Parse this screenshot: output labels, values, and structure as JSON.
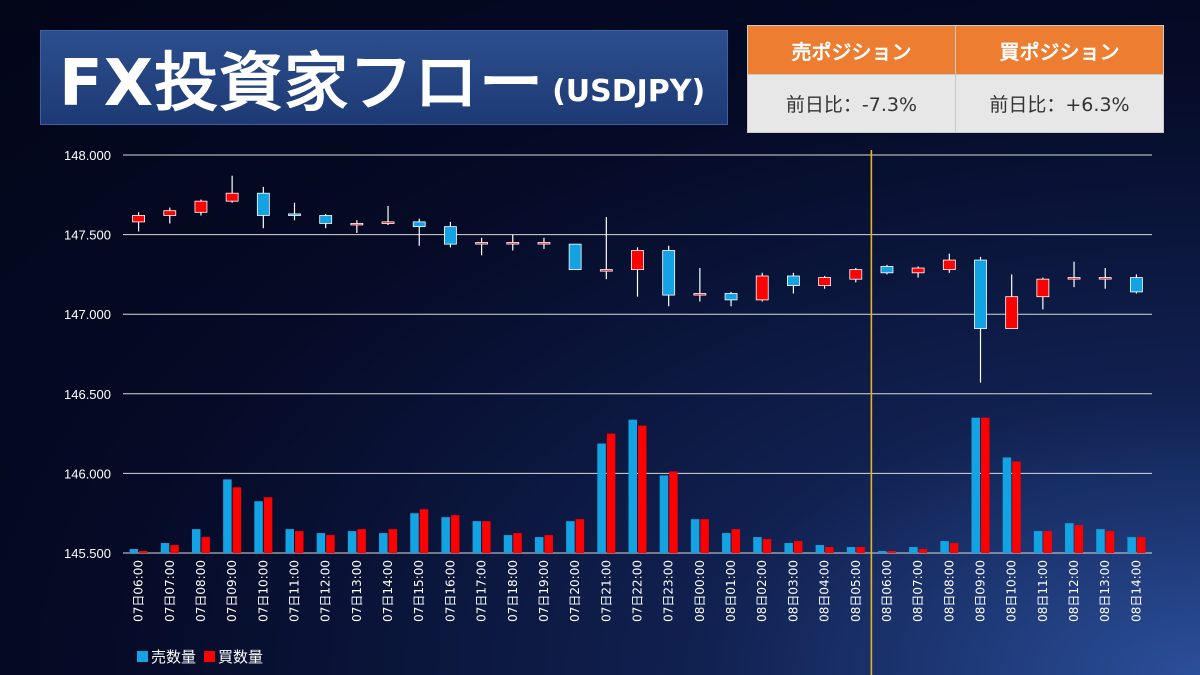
{
  "header": {
    "title": "FX投資家フロー",
    "subtitle": "(USDJPY)"
  },
  "position_table": {
    "sell_header": "売ポジション",
    "buy_header": "買ポジション",
    "sell_change": "前日比：-7.3%",
    "buy_change": "前日比：+6.3%"
  },
  "colors": {
    "sell": "#13a3e3",
    "buy": "#ff0000",
    "marker_line": "#e6b422",
    "grid": "#d9d9d9"
  },
  "legend": {
    "sell_label": "売数量",
    "buy_label": "買数量"
  },
  "chart_data": {
    "type": "candlestick_with_volume_bars",
    "ylim": [
      145.5,
      148.0
    ],
    "yticks": [
      "148.000",
      "147.500",
      "147.000",
      "146.500",
      "146.000",
      "145.500"
    ],
    "ytick_values": [
      148.0,
      147.5,
      147.0,
      146.5,
      146.0,
      145.5
    ],
    "vertical_marker_category": "08日06:00",
    "categories": [
      "07日06:00",
      "07日07:00",
      "07日08:00",
      "07日09:00",
      "07日10:00",
      "07日11:00",
      "07日12:00",
      "07日13:00",
      "07日14:00",
      "07日15:00",
      "07日16:00",
      "07日17:00",
      "07日18:00",
      "07日19:00",
      "07日20:00",
      "07日21:00",
      "07日22:00",
      "07日23:00",
      "08日00:00",
      "08日01:00",
      "08日02:00",
      "08日03:00",
      "08日04:00",
      "08日05:00",
      "08日06:00",
      "08日07:00",
      "08日08:00",
      "08日09:00",
      "08日10:00",
      "08日11:00",
      "08日12:00",
      "08日13:00",
      "08日14:00"
    ],
    "candles": [
      {
        "open": 147.58,
        "close": 147.62,
        "high": 147.64,
        "low": 147.52
      },
      {
        "open": 147.62,
        "close": 147.65,
        "high": 147.67,
        "low": 147.57
      },
      {
        "open": 147.64,
        "close": 147.71,
        "high": 147.72,
        "low": 147.62
      },
      {
        "open": 147.71,
        "close": 147.76,
        "high": 147.87,
        "low": 147.7
      },
      {
        "open": 147.76,
        "close": 147.62,
        "high": 147.8,
        "low": 147.54
      },
      {
        "open": 147.63,
        "close": 147.62,
        "high": 147.7,
        "low": 147.59
      },
      {
        "open": 147.62,
        "close": 147.57,
        "high": 147.63,
        "low": 147.54
      },
      {
        "open": 147.57,
        "close": 147.57,
        "high": 147.59,
        "low": 147.51
      },
      {
        "open": 147.57,
        "close": 147.58,
        "high": 147.68,
        "low": 147.56
      },
      {
        "open": 147.58,
        "close": 147.55,
        "high": 147.6,
        "low": 147.43
      },
      {
        "open": 147.55,
        "close": 147.44,
        "high": 147.58,
        "low": 147.42
      },
      {
        "open": 147.45,
        "close": 147.45,
        "high": 147.48,
        "low": 147.37
      },
      {
        "open": 147.45,
        "close": 147.45,
        "high": 147.5,
        "low": 147.4
      },
      {
        "open": 147.45,
        "close": 147.45,
        "high": 147.48,
        "low": 147.41
      },
      {
        "open": 147.44,
        "close": 147.28,
        "high": 147.44,
        "low": 147.28
      },
      {
        "open": 147.28,
        "close": 147.28,
        "high": 147.61,
        "low": 147.22
      },
      {
        "open": 147.28,
        "close": 147.4,
        "high": 147.42,
        "low": 147.11
      },
      {
        "open": 147.4,
        "close": 147.12,
        "high": 147.43,
        "low": 147.05
      },
      {
        "open": 147.12,
        "close": 147.13,
        "high": 147.29,
        "low": 147.08
      },
      {
        "open": 147.13,
        "close": 147.09,
        "high": 147.14,
        "low": 147.05
      },
      {
        "open": 147.09,
        "close": 147.24,
        "high": 147.26,
        "low": 147.08
      },
      {
        "open": 147.24,
        "close": 147.18,
        "high": 147.26,
        "low": 147.13
      },
      {
        "open": 147.18,
        "close": 147.23,
        "high": 147.24,
        "low": 147.16
      },
      {
        "open": 147.22,
        "close": 147.28,
        "high": 147.29,
        "low": 147.2
      },
      {
        "open": 147.3,
        "close": 147.26,
        "high": 147.31,
        "low": 147.25
      },
      {
        "open": 147.26,
        "close": 147.29,
        "high": 147.3,
        "low": 147.23
      },
      {
        "open": 147.28,
        "close": 147.34,
        "high": 147.38,
        "low": 147.26
      },
      {
        "open": 147.34,
        "close": 146.91,
        "high": 147.36,
        "low": 146.57
      },
      {
        "open": 146.91,
        "close": 147.11,
        "high": 147.25,
        "low": 146.91
      },
      {
        "open": 147.11,
        "close": 147.22,
        "high": 147.23,
        "low": 147.03
      },
      {
        "open": 147.23,
        "close": 147.23,
        "high": 147.33,
        "low": 147.17
      },
      {
        "open": 147.23,
        "close": 147.23,
        "high": 147.29,
        "low": 147.16
      },
      {
        "open": 147.23,
        "close": 147.14,
        "high": 147.25,
        "low": 147.13
      }
    ],
    "sell_volume": [
      0.02,
      0.05,
      0.12,
      0.37,
      0.26,
      0.12,
      0.1,
      0.11,
      0.1,
      0.2,
      0.18,
      0.16,
      0.09,
      0.08,
      0.16,
      0.55,
      0.67,
      0.39,
      0.17,
      0.1,
      0.08,
      0.05,
      0.04,
      0.03,
      0.01,
      0.03,
      0.06,
      0.68,
      0.48,
      0.11,
      0.15,
      0.12,
      0.08
    ],
    "buy_volume": [
      0.01,
      0.04,
      0.08,
      0.33,
      0.28,
      0.11,
      0.09,
      0.12,
      0.12,
      0.22,
      0.19,
      0.16,
      0.1,
      0.09,
      0.17,
      0.6,
      0.64,
      0.41,
      0.17,
      0.12,
      0.07,
      0.06,
      0.03,
      0.03,
      0.01,
      0.02,
      0.05,
      0.68,
      0.46,
      0.11,
      0.14,
      0.11,
      0.08
    ]
  }
}
